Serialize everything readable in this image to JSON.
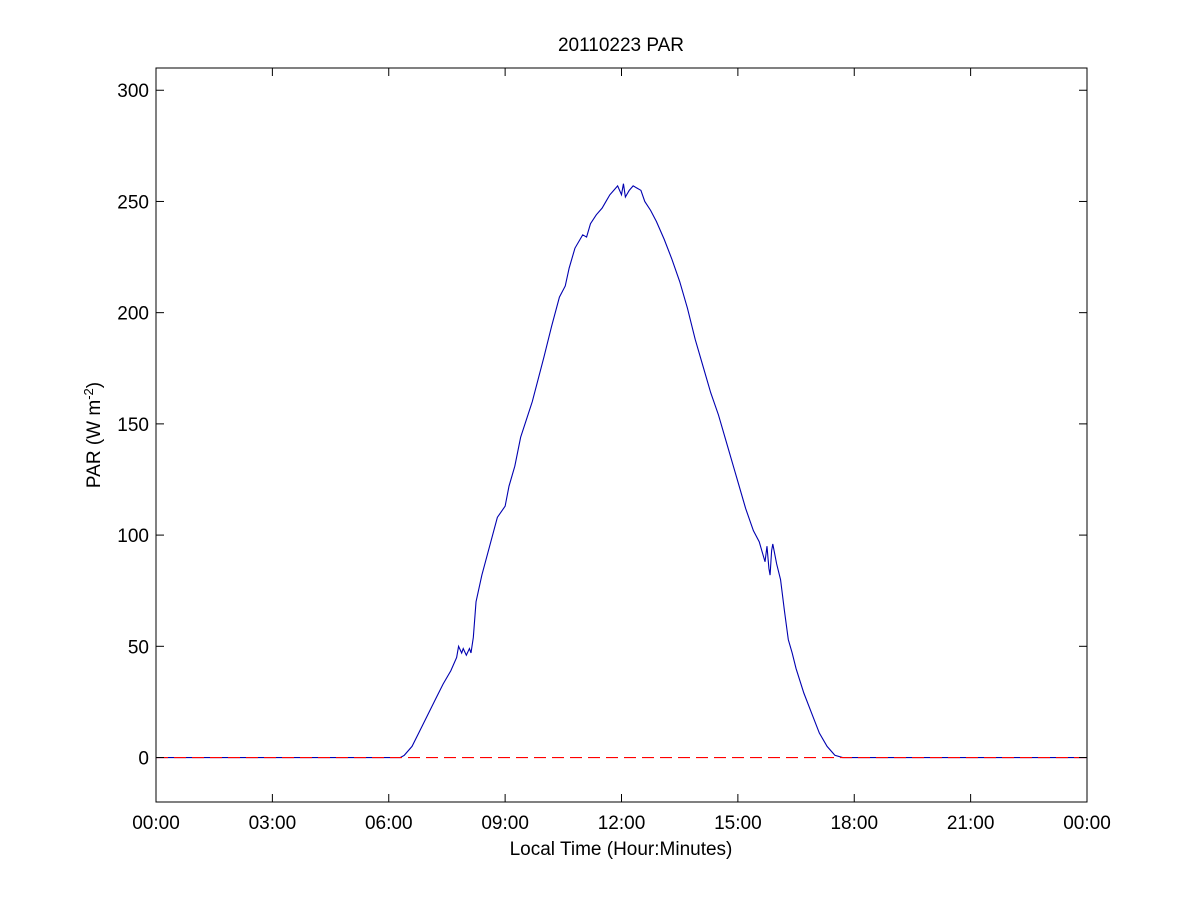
{
  "chart_data": {
    "type": "line",
    "title": "20110223 PAR",
    "xlabel": "Local Time (Hour:Minutes)",
    "ylabel": {
      "main": "PAR (W m",
      "superscript": "-2",
      "close": ")"
    },
    "x_unit": "hours since 00:00 local time",
    "xlim": [
      0,
      24
    ],
    "ylim": [
      -20,
      310
    ],
    "x_ticks": [
      {
        "value": 0,
        "label": "00:00"
      },
      {
        "value": 3,
        "label": "03:00"
      },
      {
        "value": 6,
        "label": "06:00"
      },
      {
        "value": 9,
        "label": "09:00"
      },
      {
        "value": 12,
        "label": "12:00"
      },
      {
        "value": 15,
        "label": "15:00"
      },
      {
        "value": 18,
        "label": "18:00"
      },
      {
        "value": 21,
        "label": "21:00"
      },
      {
        "value": 24,
        "label": "00:00"
      }
    ],
    "y_ticks": [
      {
        "value": 0,
        "label": "0"
      },
      {
        "value": 50,
        "label": "50"
      },
      {
        "value": 100,
        "label": "100"
      },
      {
        "value": 150,
        "label": "150"
      },
      {
        "value": 200,
        "label": "200"
      },
      {
        "value": 250,
        "label": "250"
      },
      {
        "value": 300,
        "label": "300"
      }
    ],
    "grid": false,
    "legend": "none",
    "series": [
      {
        "style": "solid",
        "color": "#0000b0",
        "x": [
          0,
          6.3,
          6.4,
          6.6,
          6.8,
          7.0,
          7.2,
          7.4,
          7.6,
          7.75,
          7.8,
          7.88,
          7.92,
          8.0,
          8.08,
          8.12,
          8.18,
          8.25,
          8.4,
          8.6,
          8.8,
          9.0,
          9.1,
          9.25,
          9.4,
          9.55,
          9.7,
          9.85,
          10.0,
          10.2,
          10.4,
          10.55,
          10.65,
          10.8,
          11.0,
          11.1,
          11.2,
          11.35,
          11.5,
          11.6,
          11.7,
          11.8,
          11.9,
          12.0,
          12.05,
          12.1,
          12.2,
          12.3,
          12.4,
          12.5,
          12.6,
          12.75,
          12.9,
          13.1,
          13.3,
          13.5,
          13.7,
          13.9,
          14.1,
          14.3,
          14.5,
          14.7,
          14.9,
          15.0,
          15.2,
          15.4,
          15.55,
          15.7,
          15.75,
          15.8,
          15.83,
          15.87,
          15.9,
          16.0,
          16.1,
          16.2,
          16.3,
          16.4,
          16.5,
          16.7,
          16.9,
          17.1,
          17.3,
          17.5,
          17.7,
          17.9,
          18.0,
          18.1,
          18.2,
          18.3,
          24
        ],
        "y": [
          0,
          0,
          1,
          5,
          12,
          19,
          26,
          33,
          39,
          45,
          50,
          47,
          49,
          46,
          49,
          47,
          54,
          70,
          82,
          95,
          108,
          113,
          122,
          131,
          144,
          152,
          160,
          170,
          180,
          194,
          207,
          212,
          220,
          229,
          235,
          234,
          240,
          244,
          247,
          250,
          253,
          255,
          257,
          253,
          258,
          252,
          255,
          257,
          256,
          255,
          250,
          246,
          241,
          233,
          224,
          214,
          202,
          188,
          176,
          164,
          154,
          142,
          130,
          124,
          112,
          102,
          97,
          88,
          95,
          85,
          82,
          93,
          96,
          87,
          80,
          66,
          53,
          47,
          40,
          29,
          20,
          11,
          5,
          1,
          0,
          0,
          0,
          0,
          0,
          0,
          0
        ]
      },
      {
        "style": "dashed",
        "color": "#ff0000",
        "x": [
          0,
          24
        ],
        "y": [
          0,
          0
        ]
      }
    ]
  }
}
